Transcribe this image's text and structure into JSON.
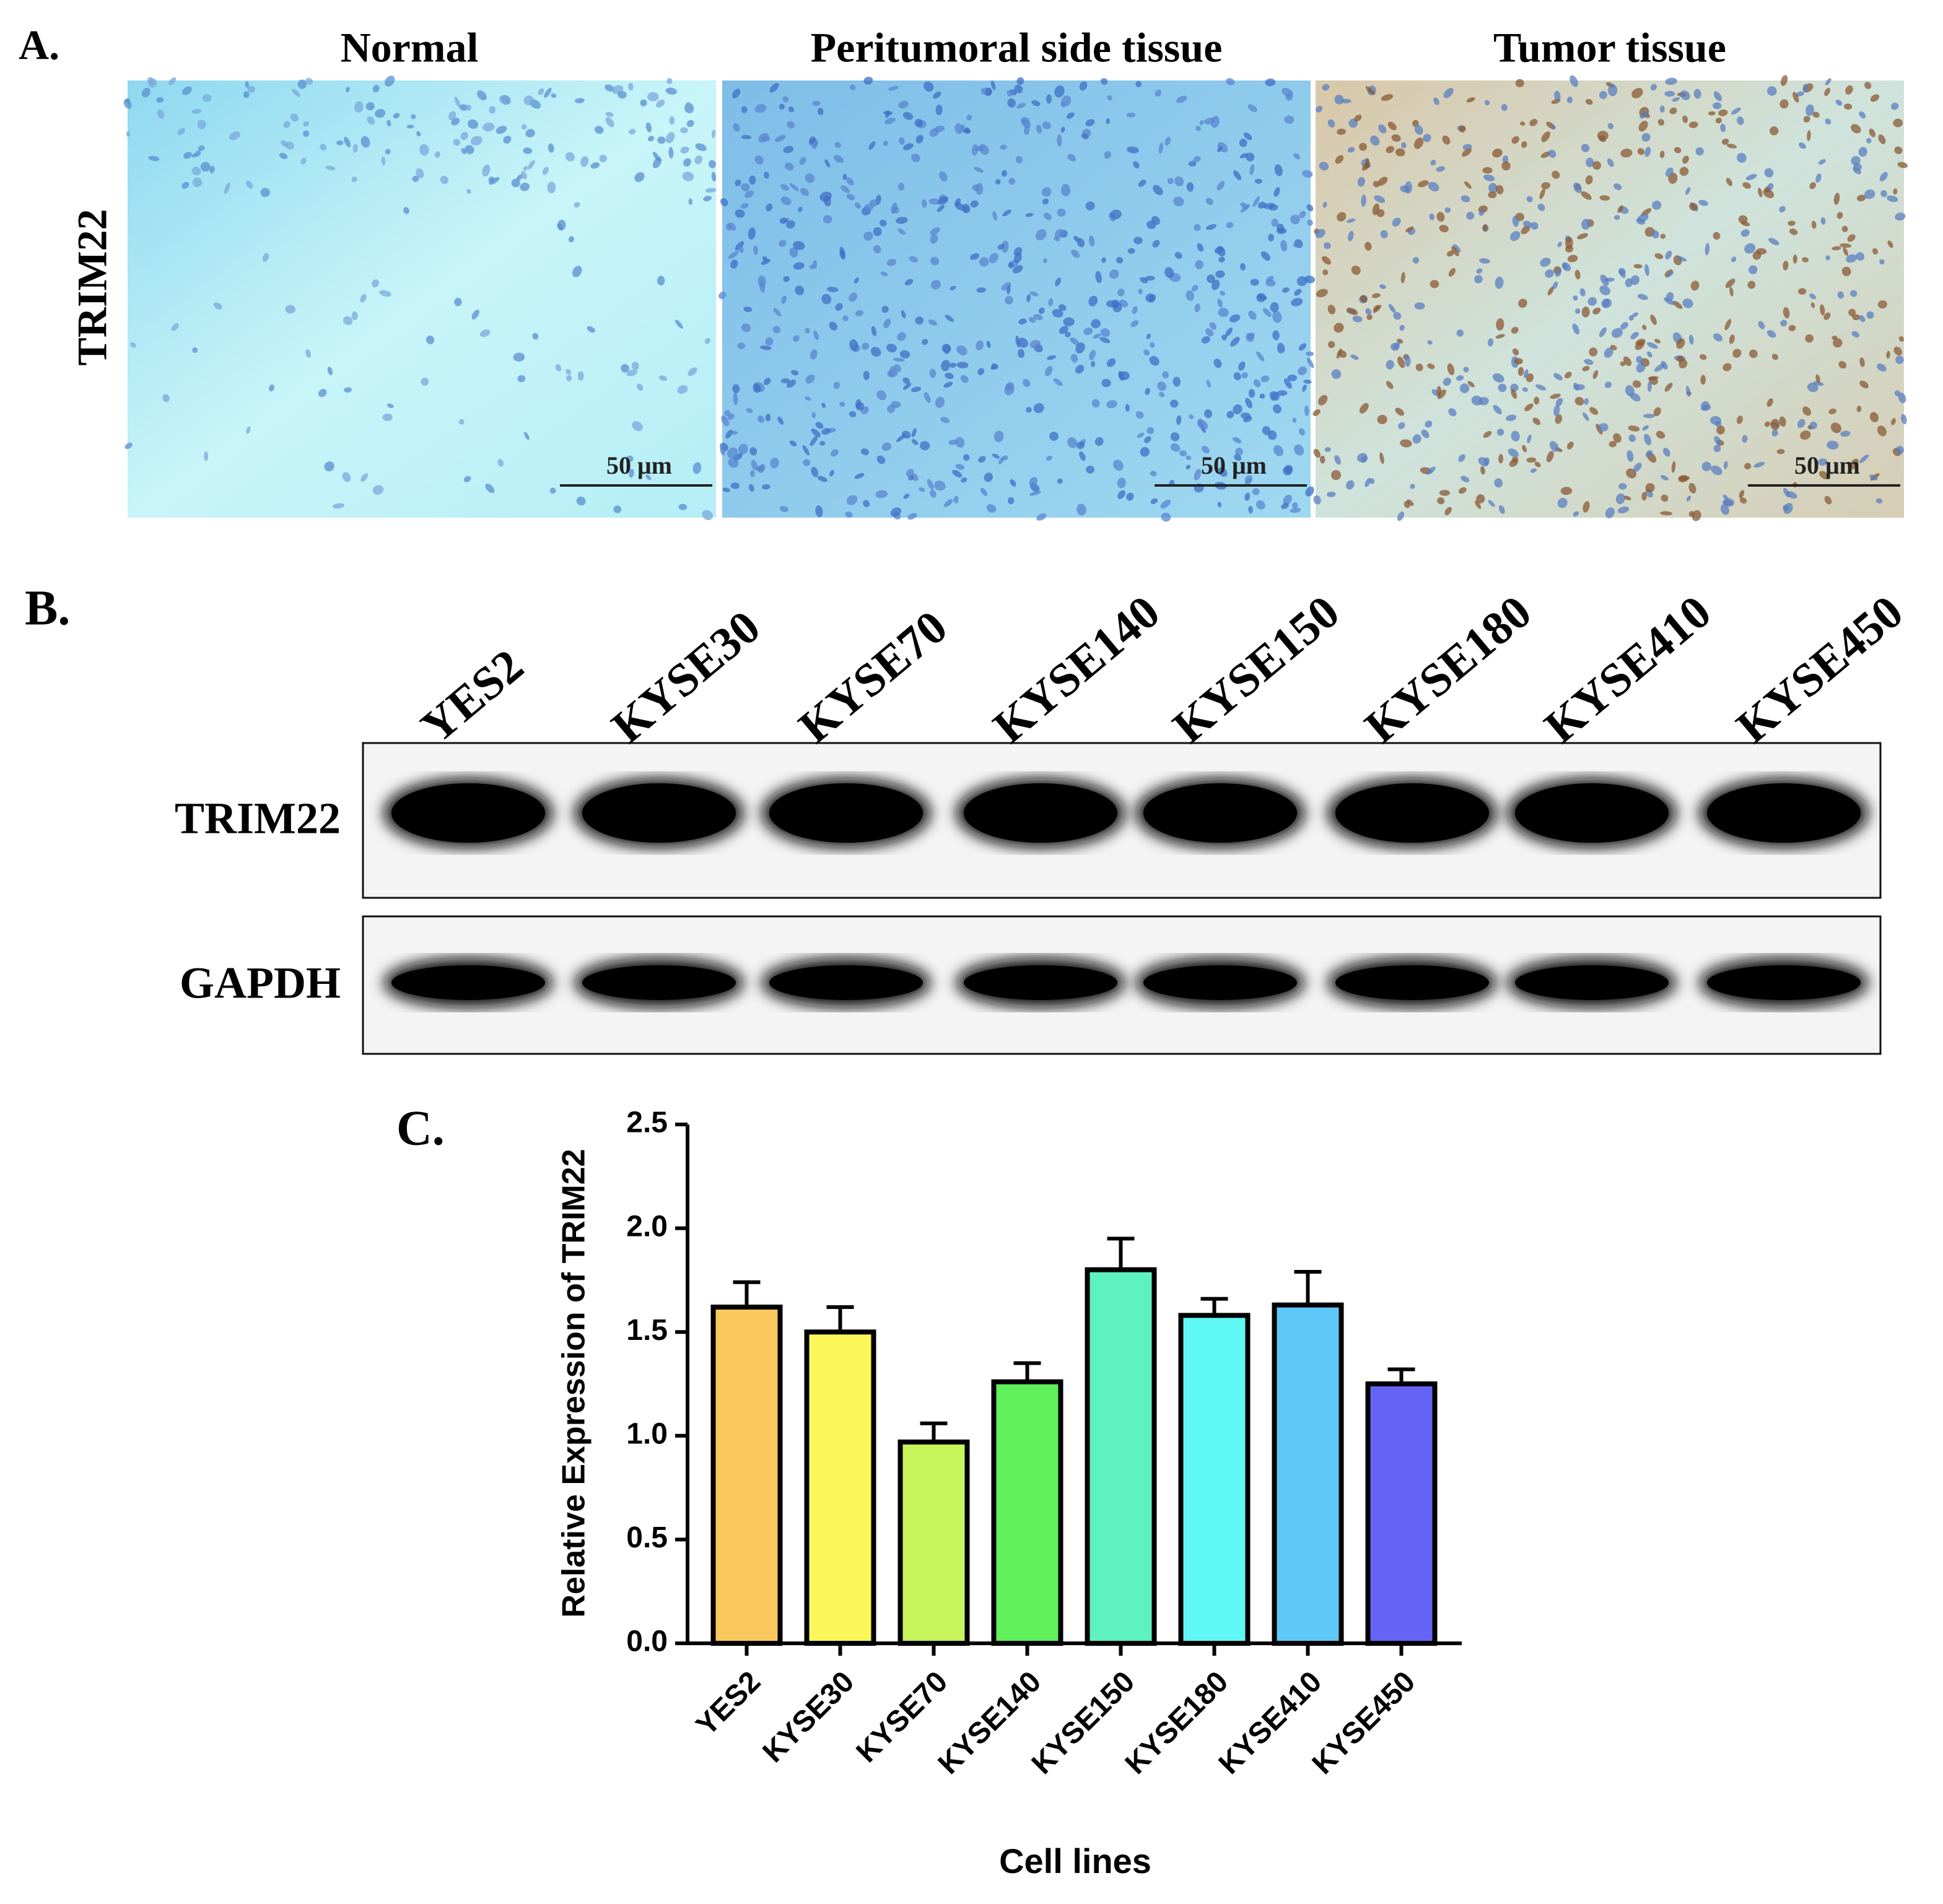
{
  "panel_a": {
    "label": "A.",
    "titles": [
      "Normal",
      "Peritumoral side tissue",
      "Tumor tissue"
    ],
    "row_label": "TRIM22",
    "scale_labels": [
      "50 μm",
      "50 μm",
      "50 μm"
    ]
  },
  "panel_b": {
    "label": "B.",
    "lanes": [
      "YES2",
      "KYSE30",
      "KYSE70",
      "KYSE140",
      "KYSE150",
      "KYSE180",
      "KYSE410",
      "KYSE450"
    ],
    "rows": [
      "TRIM22",
      "GAPDH"
    ]
  },
  "chart_data": {
    "type": "bar",
    "label": "C.",
    "ylabel": "Relative Expression of TRIM22",
    "xlabel": "Cell lines",
    "categories": [
      "YES2",
      "KYSE30",
      "KYSE70",
      "KYSE140",
      "KYSE150",
      "KYSE180",
      "KYSE410",
      "KYSE450"
    ],
    "values": [
      1.62,
      1.5,
      0.97,
      1.26,
      1.8,
      1.58,
      1.63,
      1.25
    ],
    "errors": [
      0.12,
      0.12,
      0.09,
      0.09,
      0.15,
      0.08,
      0.16,
      0.07
    ],
    "colors": [
      "#f9c85f",
      "#fbf75a",
      "#c5f45b",
      "#5ff05c",
      "#5df2c0",
      "#5ff8f4",
      "#5ec8f9",
      "#6563f5"
    ],
    "ylim": [
      0,
      2.5
    ],
    "yticks": [
      {
        "value": 0,
        "label": "0.0"
      },
      0.5,
      {
        "value": 1,
        "label": "1.0"
      },
      1.5,
      {
        "value": 2,
        "label": "2.0"
      },
      2.5
    ]
  }
}
